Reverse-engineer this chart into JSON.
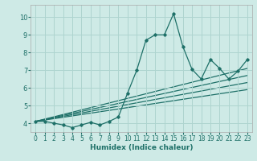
{
  "xlabel": "Humidex (Indice chaleur)",
  "ylabel": "",
  "background_color": "#ceeae6",
  "grid_color": "#aed4cf",
  "line_color": "#1e7068",
  "xlim": [
    -0.5,
    23.5
  ],
  "ylim": [
    3.5,
    10.7
  ],
  "xticks": [
    0,
    1,
    2,
    3,
    4,
    5,
    6,
    7,
    8,
    9,
    10,
    11,
    12,
    13,
    14,
    15,
    16,
    17,
    18,
    19,
    20,
    21,
    22,
    23
  ],
  "yticks": [
    4,
    5,
    6,
    7,
    8,
    9,
    10
  ],
  "series": [
    [
      0,
      4.1
    ],
    [
      1,
      4.1
    ],
    [
      2,
      4.0
    ],
    [
      3,
      3.9
    ],
    [
      4,
      3.75
    ],
    [
      5,
      3.9
    ],
    [
      6,
      4.05
    ],
    [
      7,
      3.9
    ],
    [
      8,
      4.1
    ],
    [
      9,
      4.35
    ],
    [
      10,
      5.7
    ],
    [
      11,
      7.0
    ],
    [
      12,
      8.7
    ],
    [
      13,
      9.0
    ],
    [
      14,
      9.0
    ],
    [
      15,
      10.2
    ],
    [
      16,
      8.35
    ],
    [
      17,
      7.05
    ],
    [
      18,
      6.5
    ],
    [
      19,
      7.6
    ],
    [
      20,
      7.1
    ],
    [
      21,
      6.5
    ],
    [
      22,
      6.95
    ],
    [
      23,
      7.6
    ]
  ],
  "trend_lines": [
    {
      "x": [
        0,
        23
      ],
      "y": [
        4.1,
        5.9
      ]
    },
    {
      "x": [
        0,
        23
      ],
      "y": [
        4.1,
        6.3
      ]
    },
    {
      "x": [
        0,
        23
      ],
      "y": [
        4.1,
        6.7
      ]
    },
    {
      "x": [
        0,
        23
      ],
      "y": [
        4.1,
        7.1
      ]
    }
  ]
}
